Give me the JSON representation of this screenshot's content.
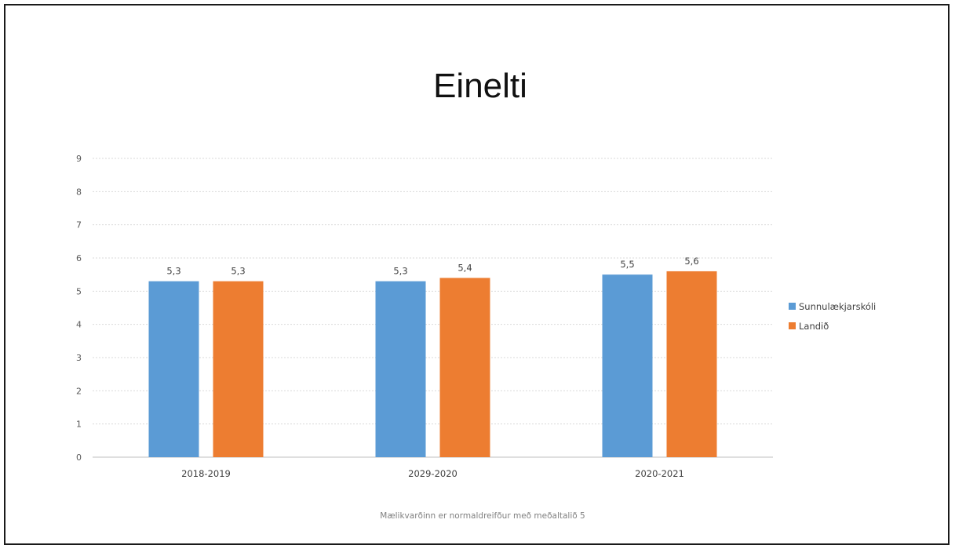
{
  "chart_data": {
    "type": "bar",
    "title": "Einelti",
    "categories": [
      "2018-2019",
      "2029-2020",
      "2020-2021"
    ],
    "series": [
      {
        "name": "Sunnulækjarskóli",
        "values": [
          5.3,
          5.3,
          5.5
        ],
        "data_labels": [
          "5,3",
          "5,3",
          "5,5"
        ],
        "color": "#5B9BD5"
      },
      {
        "name": "Landið",
        "values": [
          5.3,
          5.4,
          5.6
        ],
        "data_labels": [
          "5,3",
          "5,4",
          "5,6"
        ],
        "color": "#ED7D31"
      }
    ],
    "ylim": [
      0,
      9
    ],
    "yticks": [
      0,
      1,
      2,
      3,
      4,
      5,
      6,
      7,
      8,
      9
    ],
    "grid": true,
    "legend": "right",
    "footnote": "Mælikvarðinn er normaldreifður með meðaltalið 5"
  }
}
